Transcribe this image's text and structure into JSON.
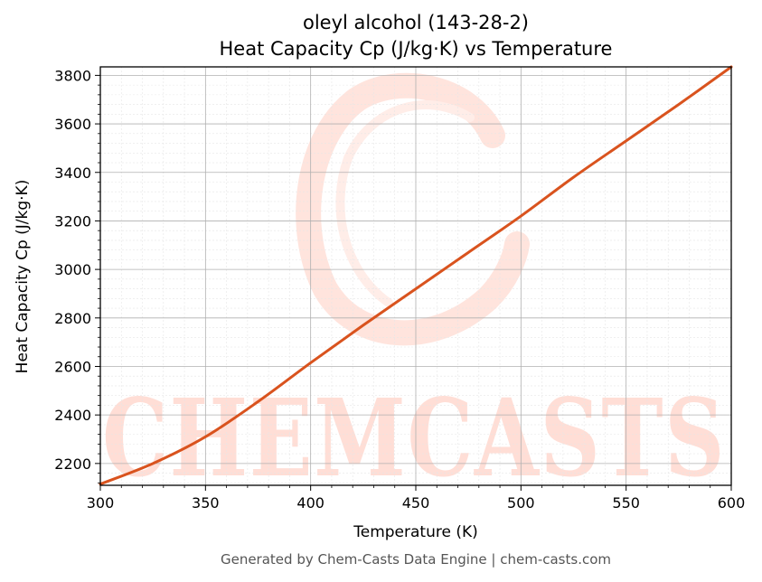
{
  "chart_data": {
    "type": "line",
    "title": "oleyl alcohol (143-28-2)",
    "subtitle": "Heat Capacity Cp (J/kg·K) vs Temperature",
    "xlabel": "Temperature (K)",
    "ylabel": "Heat Capacity Cp (J/kg·K)",
    "xlim": [
      300,
      600
    ],
    "ylim": [
      2110,
      3835
    ],
    "x_ticks": [
      300,
      350,
      400,
      450,
      500,
      550,
      600
    ],
    "y_ticks": [
      2200,
      2400,
      2600,
      2800,
      3000,
      3200,
      3400,
      3600,
      3800
    ],
    "grid": true,
    "series": [
      {
        "color": "#d9531e",
        "x": [
          300,
          325,
          350,
          375,
          400,
          425,
          450,
          475,
          500,
          525,
          550,
          575,
          600
        ],
        "y": [
          2115,
          2200,
          2310,
          2455,
          2615,
          2770,
          2920,
          3070,
          3220,
          3380,
          3530,
          3680,
          3835
        ]
      }
    ]
  },
  "watermark": {
    "text": "CHEMCASTS",
    "color": "#ffd9d0"
  },
  "footer": "Generated by Chem-Casts Data Engine | chem-casts.com"
}
